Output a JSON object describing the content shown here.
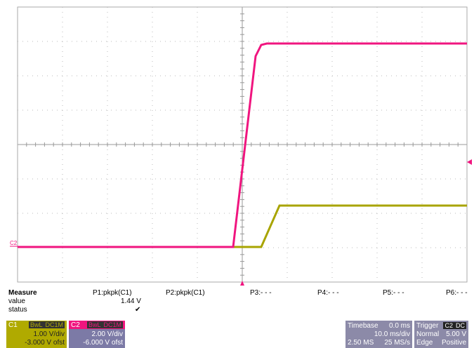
{
  "screen": {
    "channel_marker": "C2",
    "measure": {
      "heading": "Measure",
      "params": [
        "P1:pkpk(C1)",
        "P2:pkpk(C1)",
        "P3:- - -",
        "P4:- - -",
        "P5:- - -",
        "P6:- - -"
      ],
      "value_label": "value",
      "value": "1.44 V",
      "status_label": "status",
      "status": "✔"
    },
    "channels": [
      {
        "name": "C1",
        "bw": "BwL",
        "coupling": "DC1M",
        "scale": "1.00 V/div",
        "offset": "-3.000 V ofst"
      },
      {
        "name": "C2",
        "bw": "BwL",
        "coupling": "DC1M",
        "scale": "2.00 V/div",
        "offset": "-6.000 V ofst"
      }
    ],
    "timebase": {
      "label": "Timebase",
      "delay": "0.0 ms",
      "scale": "10.0 ms/div",
      "samples": "2.50 MS",
      "rate": "25 MS/s"
    },
    "trigger": {
      "label": "Trigger",
      "source": "C2",
      "coupling": "DC",
      "mode": "Normal",
      "level": "5.00 V",
      "type": "Edge",
      "slope": "Positive"
    }
  }
}
